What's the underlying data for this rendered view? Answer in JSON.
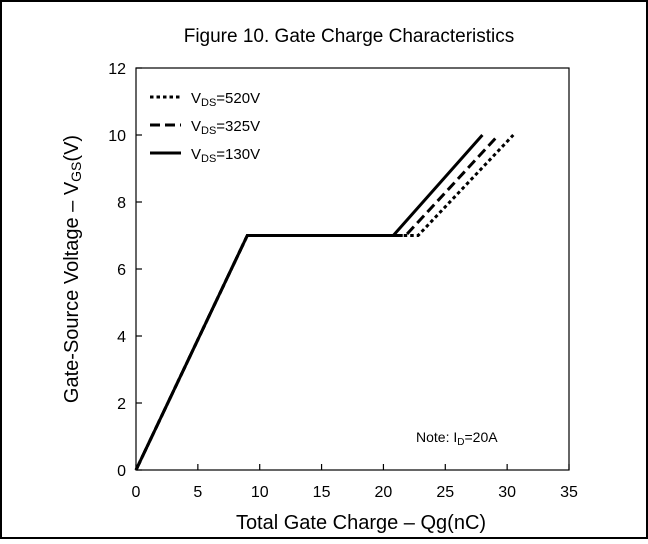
{
  "chart_data": {
    "type": "line",
    "title": "Figure 10. Gate Charge Characteristics",
    "xlabel": "Total Gate Charge – Qg(nC)",
    "ylabel": {
      "main": "Gate-Source Voltage – V",
      "sub": "GS",
      "tail": "(V)"
    },
    "xlim": [
      0,
      35
    ],
    "ylim": [
      0,
      12
    ],
    "xticks": [
      "0",
      "5",
      "10",
      "15",
      "20",
      "25",
      "30",
      "35"
    ],
    "yticks": [
      "0",
      "2",
      "4",
      "6",
      "8",
      "10",
      "12"
    ],
    "grid": false,
    "legend_position": "top-left",
    "series": [
      {
        "name": {
          "main": "V",
          "sub": "DS",
          "tail": "=520V"
        },
        "style": "dotted",
        "x": [
          0,
          9,
          22.8,
          30.5
        ],
        "y": [
          0,
          7,
          7,
          10
        ]
      },
      {
        "name": {
          "main": "V",
          "sub": "DS",
          "tail": "=325V"
        },
        "style": "dashed",
        "x": [
          0,
          9,
          21.8,
          29.3
        ],
        "y": [
          0,
          7,
          7,
          10
        ]
      },
      {
        "name": {
          "main": "V",
          "sub": "DS",
          "tail": "=130V"
        },
        "style": "solid",
        "x": [
          0,
          9,
          20.8,
          28
        ],
        "y": [
          0,
          7,
          7,
          10
        ]
      }
    ],
    "annotation": {
      "main": "Note: I",
      "sub": "D",
      "tail": "=20A"
    }
  },
  "colors": {
    "line": "#000000",
    "frame": "#000000",
    "background": "#ffffff"
  }
}
